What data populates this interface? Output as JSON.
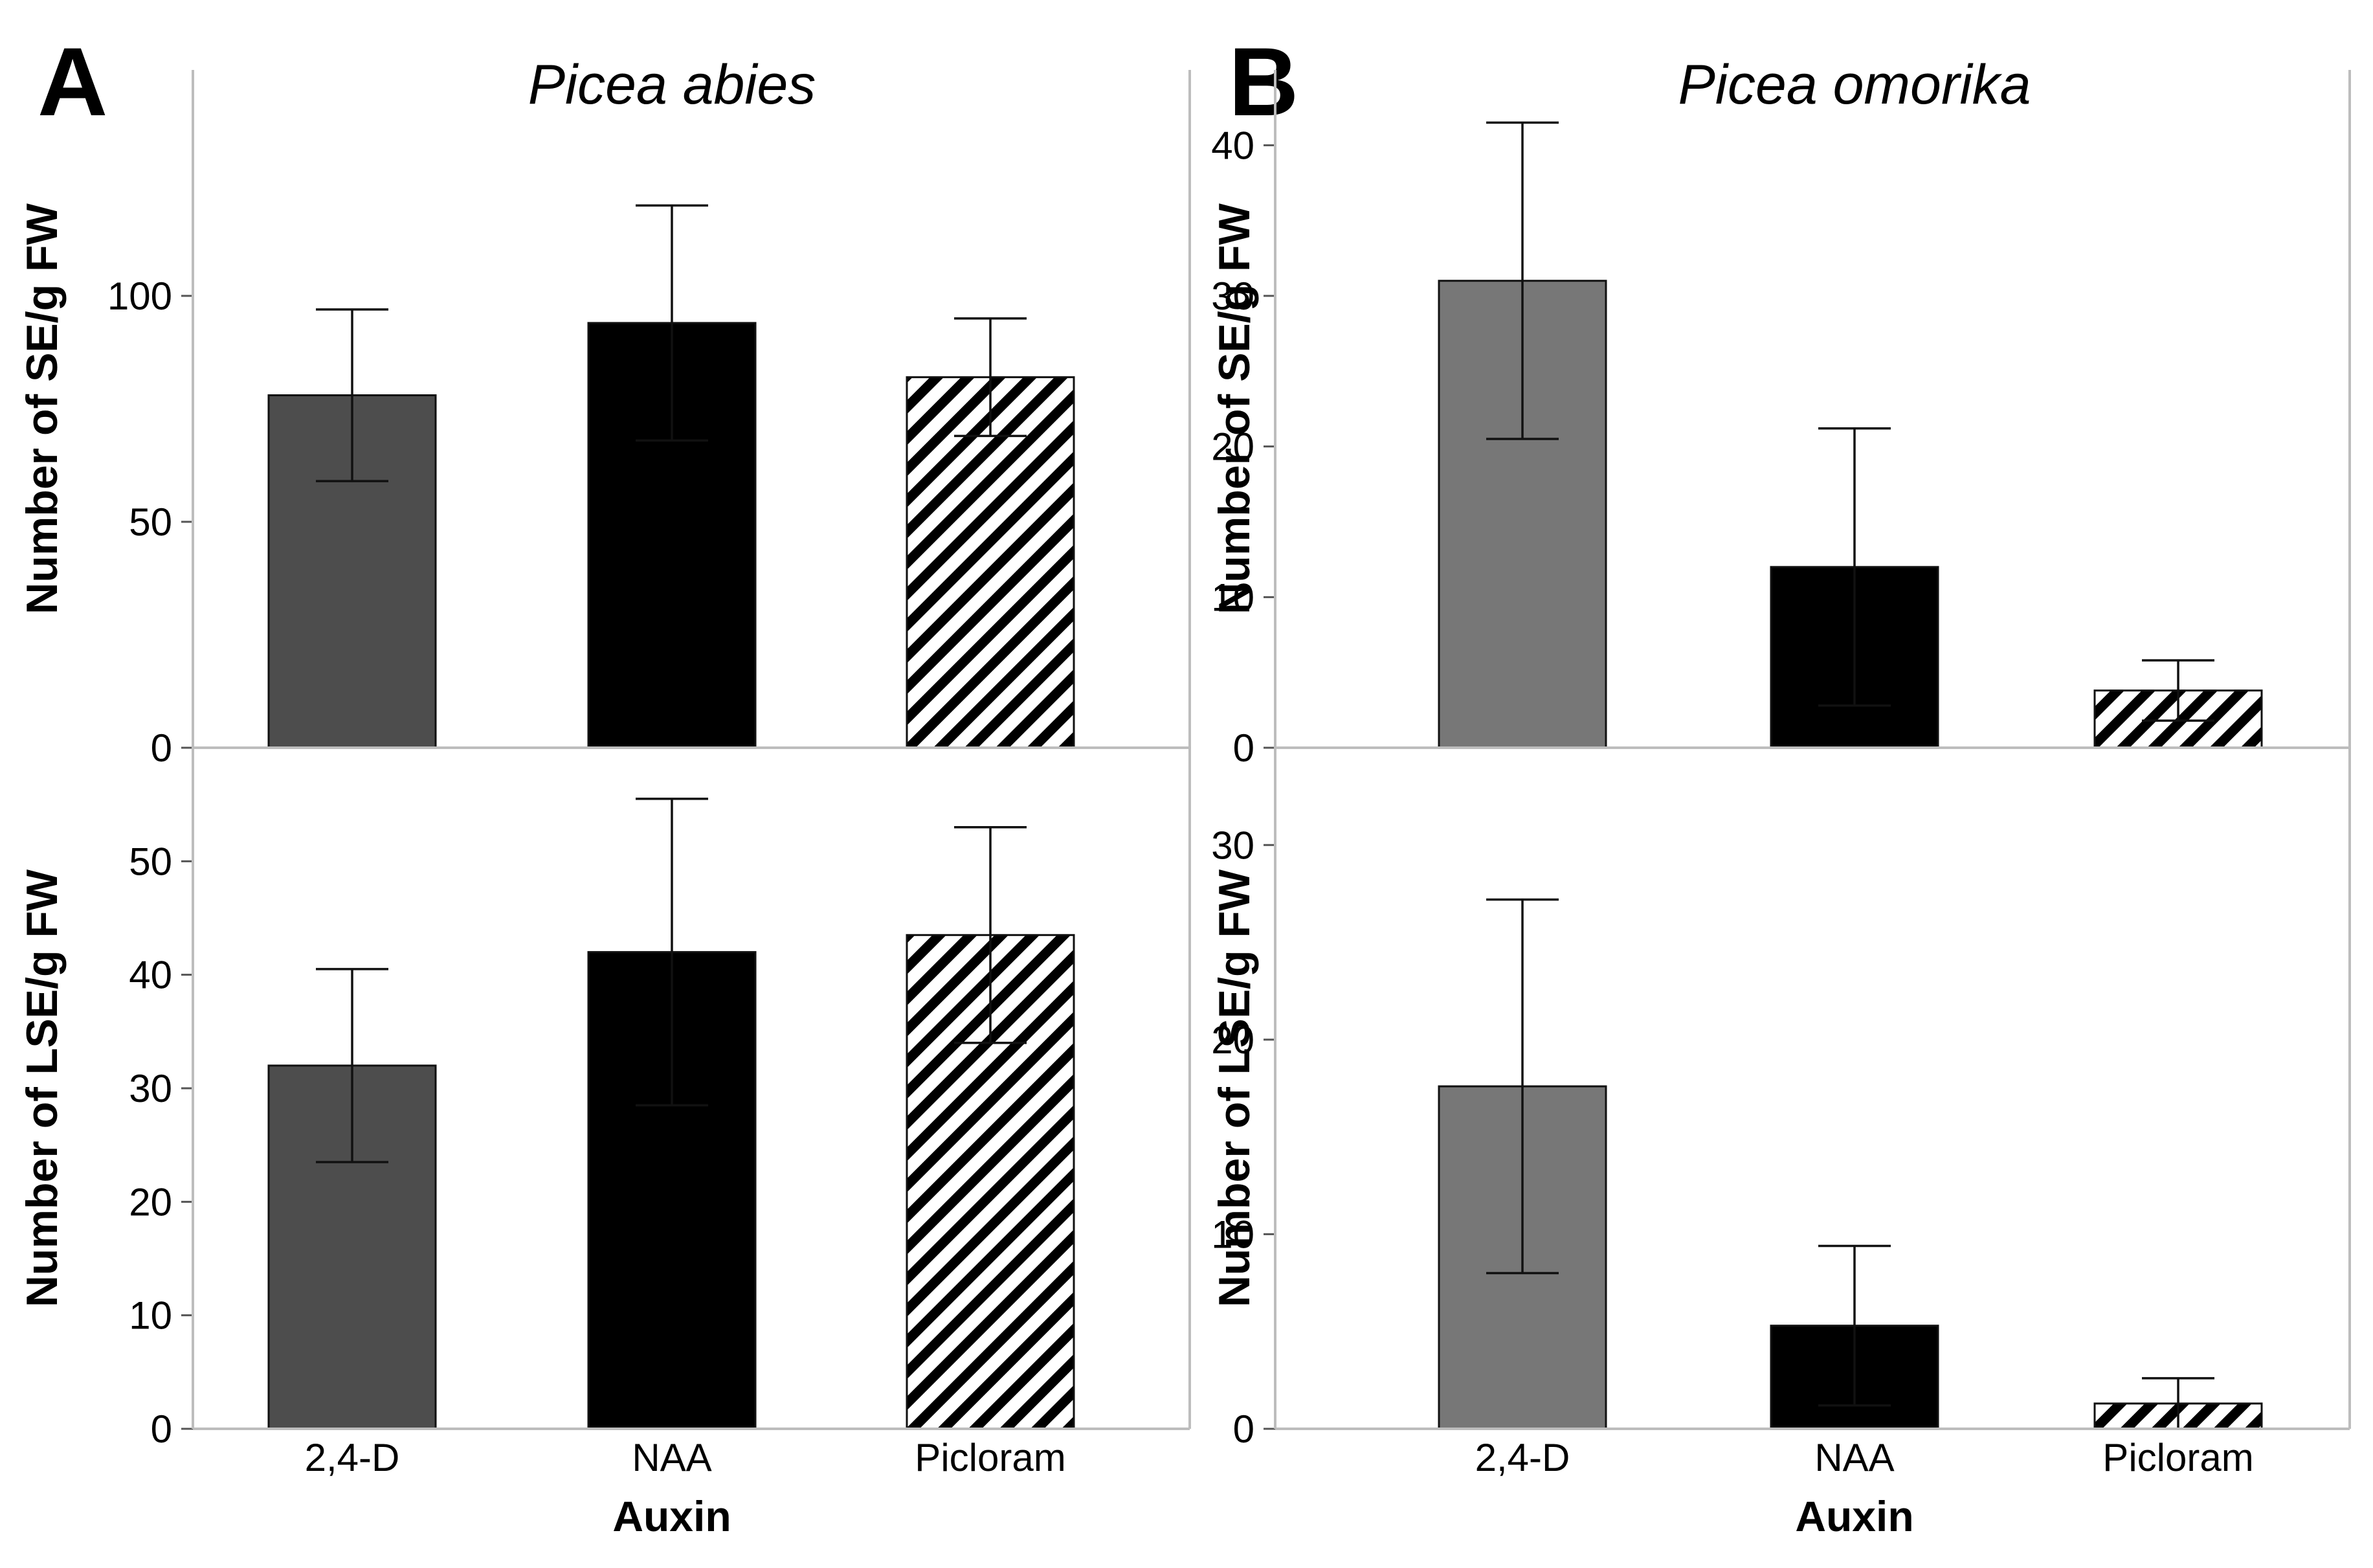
{
  "chart_data": [
    {
      "panel": "A",
      "title": "Picea abies",
      "xlabel": "Auxin",
      "categories": [
        "2,4-D",
        "NAA",
        "Picloram"
      ],
      "fills": [
        "#4d4d4d",
        "#000000",
        "hatch"
      ],
      "subplots": [
        {
          "type": "bar",
          "ylabel": "Number of SE/g FW",
          "ylim": [
            0,
            150
          ],
          "yticks": [
            0,
            50,
            100
          ],
          "values": [
            78,
            94,
            82
          ],
          "errors": [
            19,
            26,
            13
          ]
        },
        {
          "type": "bar",
          "ylabel": "Number of LSE/g FW",
          "ylim": [
            0,
            60
          ],
          "yticks": [
            0,
            10,
            20,
            30,
            40,
            50
          ],
          "values": [
            32,
            42,
            43.5
          ],
          "errors": [
            8.5,
            13.5,
            9.5
          ]
        }
      ]
    },
    {
      "panel": "B",
      "title": "Picea omorika",
      "xlabel": "Auxin",
      "categories": [
        "2,4-D",
        "NAA",
        "Picloram"
      ],
      "fills": [
        "#777777",
        "#000000",
        "hatch"
      ],
      "subplots": [
        {
          "type": "bar",
          "ylabel": "Number of SE/g FW",
          "ylim": [
            0,
            45
          ],
          "yticks": [
            0,
            10,
            20,
            30,
            40
          ],
          "values": [
            31,
            12,
            3.8
          ],
          "errors": [
            10.5,
            9.2,
            2
          ]
        },
        {
          "type": "bar",
          "ylabel": "Number of LSE/g FW",
          "ylim": [
            0,
            35
          ],
          "yticks": [
            0,
            10,
            20,
            30
          ],
          "values": [
            17.6,
            5.3,
            1.3
          ],
          "errors": [
            9.6,
            4.1,
            1.3
          ]
        }
      ]
    }
  ]
}
